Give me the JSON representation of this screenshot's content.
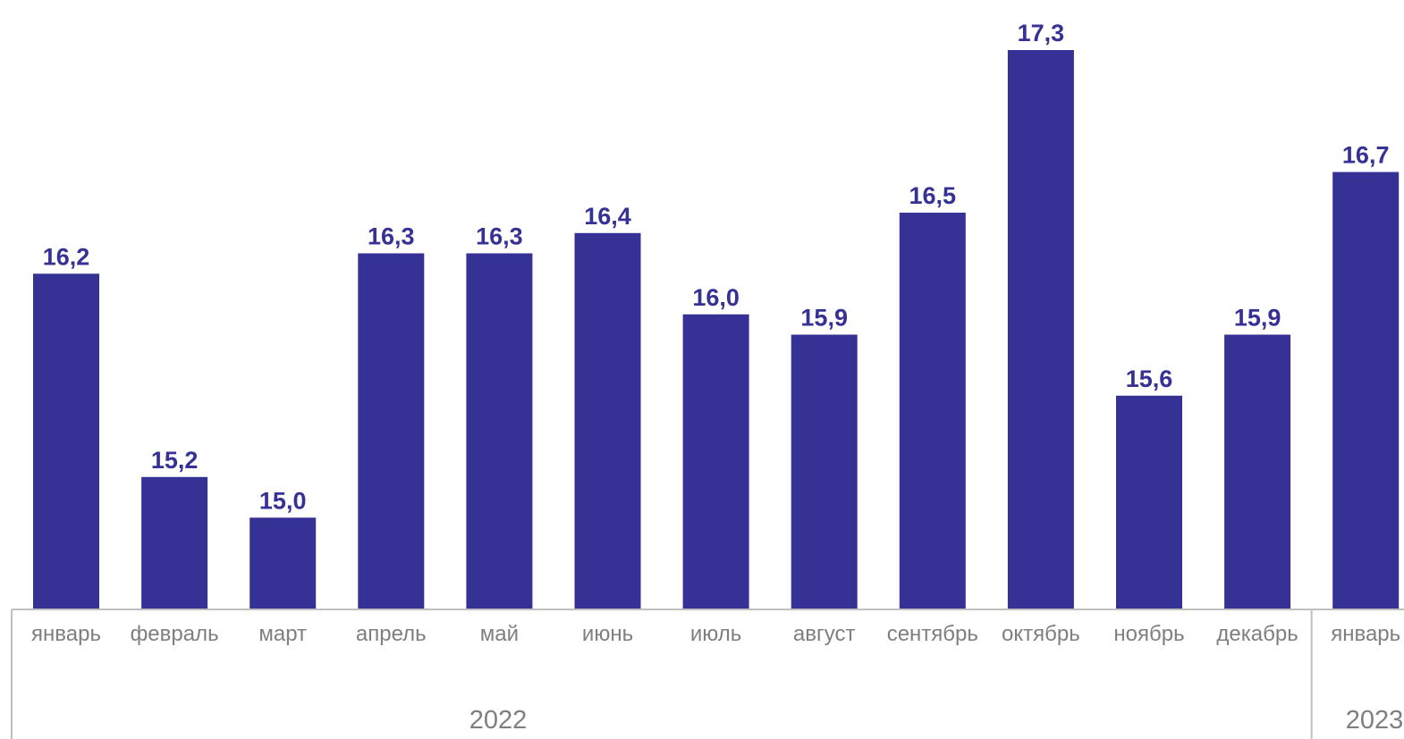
{
  "chart_data": {
    "type": "bar",
    "title": "",
    "xlabel": "",
    "ylabel": "",
    "categories": [
      "январь",
      "февраль",
      "март",
      "апрель",
      "май",
      "июнь",
      "июль",
      "август",
      "сентябрь",
      "октябрь",
      "ноябрь",
      "декабрь",
      "январь"
    ],
    "values": [
      16.2,
      15.2,
      15.0,
      16.3,
      16.3,
      16.4,
      16.0,
      15.9,
      16.5,
      17.3,
      15.6,
      15.9,
      16.7
    ],
    "value_labels": [
      "16,2",
      "15,2",
      "15,0",
      "16,3",
      "16,3",
      "16,4",
      "16,0",
      "15,9",
      "16,5",
      "17,3",
      "15,6",
      "15,9",
      "16,7"
    ],
    "groups": [
      {
        "label": "2022",
        "count": 12
      },
      {
        "label": "2023",
        "count": 1
      }
    ],
    "bar_color": "#363194",
    "label_color": "#363194",
    "axis_color": "#bfbfbf",
    "grid": false,
    "legend": "none"
  }
}
